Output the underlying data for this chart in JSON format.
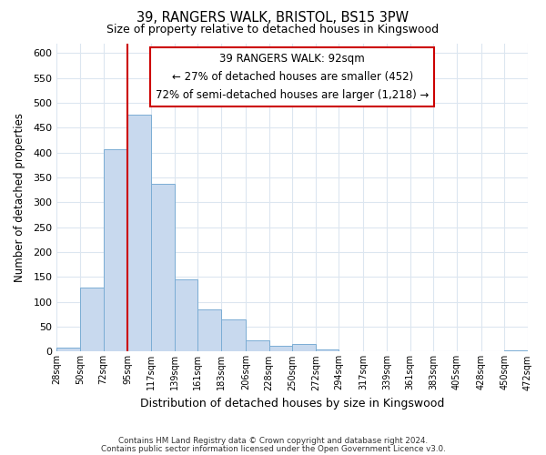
{
  "title": "39, RANGERS WALK, BRISTOL, BS15 3PW",
  "subtitle": "Size of property relative to detached houses in Kingswood",
  "xlabel": "Distribution of detached houses by size in Kingswood",
  "ylabel": "Number of detached properties",
  "bar_edges": [
    28,
    50,
    72,
    95,
    117,
    139,
    161,
    183,
    206,
    228,
    250,
    272,
    294,
    317,
    339,
    361,
    383,
    405,
    428,
    450,
    472
  ],
  "bar_heights": [
    8,
    128,
    406,
    476,
    337,
    146,
    85,
    65,
    22,
    12,
    16,
    5,
    1,
    0,
    0,
    1,
    0,
    0,
    0,
    2
  ],
  "bar_color": "#c8d9ee",
  "bar_edge_color": "#7badd4",
  "property_line_x": 95,
  "property_line_color": "#cc0000",
  "ylim": [
    0,
    620
  ],
  "yticks": [
    0,
    50,
    100,
    150,
    200,
    250,
    300,
    350,
    400,
    450,
    500,
    550,
    600
  ],
  "tick_labels": [
    "28sqm",
    "50sqm",
    "72sqm",
    "95sqm",
    "117sqm",
    "139sqm",
    "161sqm",
    "183sqm",
    "206sqm",
    "228sqm",
    "250sqm",
    "272sqm",
    "294sqm",
    "317sqm",
    "339sqm",
    "361sqm",
    "383sqm",
    "405sqm",
    "428sqm",
    "450sqm",
    "472sqm"
  ],
  "annotation_title": "39 RANGERS WALK: 92sqm",
  "annotation_line1": "← 27% of detached houses are smaller (452)",
  "annotation_line2": "72% of semi-detached houses are larger (1,218) →",
  "footer_line1": "Contains HM Land Registry data © Crown copyright and database right 2024.",
  "footer_line2": "Contains public sector information licensed under the Open Government Licence v3.0.",
  "background_color": "#ffffff",
  "grid_color": "#dce6f0"
}
